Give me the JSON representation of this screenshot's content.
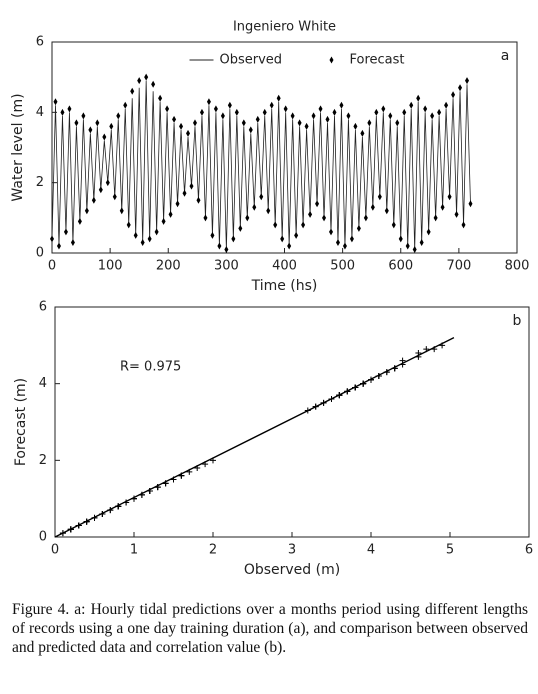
{
  "chart_data": [
    {
      "type": "line",
      "title": "Ingeniero White",
      "panel_label": "a",
      "xlabel": "Time (hs)",
      "ylabel": "Water level (m)",
      "x": [
        0,
        6,
        12,
        18,
        24,
        30,
        36,
        42,
        48,
        54,
        60,
        66,
        72,
        78,
        84,
        90,
        96,
        102,
        108,
        114,
        120,
        126,
        132,
        138,
        144,
        150,
        156,
        162,
        168,
        174,
        180,
        186,
        192,
        198,
        204,
        210,
        216,
        222,
        228,
        234,
        240,
        246,
        252,
        258,
        264,
        270,
        276,
        282,
        288,
        294,
        300,
        306,
        312,
        318,
        324,
        330,
        336,
        342,
        348,
        354,
        360,
        366,
        372,
        378,
        384,
        390,
        396,
        402,
        408,
        414,
        420,
        426,
        432,
        438,
        444,
        450,
        456,
        462,
        468,
        474,
        480,
        486,
        492,
        498,
        504,
        510,
        516,
        522,
        528,
        534,
        540,
        546,
        552,
        558,
        564,
        570,
        576,
        582,
        588,
        594,
        600,
        606,
        612,
        618,
        624,
        630,
        636,
        642,
        648,
        654,
        660,
        666,
        672,
        678,
        684,
        690,
        696,
        702,
        708,
        714,
        720
      ],
      "series": [
        {
          "name": "Observed",
          "color": "#222222",
          "marker": "line",
          "values": [
            0.4,
            4.2,
            0.2,
            3.9,
            0.6,
            4.0,
            0.3,
            3.6,
            0.9,
            3.8,
            1.2,
            3.4,
            1.5,
            3.6,
            1.8,
            3.2,
            2.0,
            3.5,
            1.6,
            3.8,
            1.2,
            4.1,
            0.8,
            4.4,
            0.5,
            4.7,
            0.3,
            4.9,
            0.4,
            4.6,
            0.6,
            4.3,
            0.9,
            4.0,
            1.1,
            3.7,
            1.4,
            3.5,
            1.7,
            3.3,
            1.9,
            3.6,
            1.5,
            3.9,
            1.0,
            4.2,
            0.5,
            4.0,
            0.2,
            3.8,
            0.1,
            4.1,
            0.4,
            3.9,
            0.7,
            3.6,
            1.0,
            3.4,
            1.3,
            3.7,
            1.6,
            3.9,
            1.2,
            4.1,
            0.8,
            4.3,
            0.4,
            4.0,
            0.2,
            3.8,
            0.5,
            3.6,
            0.8,
            3.5,
            1.1,
            3.8,
            1.4,
            4.0,
            1.0,
            3.7,
            0.6,
            3.9,
            0.3,
            4.1,
            0.2,
            3.8,
            0.4,
            3.5,
            0.7,
            3.3,
            1.0,
            3.6,
            1.3,
            3.9,
            1.6,
            4.0,
            1.2,
            3.8,
            0.8,
            3.6,
            0.4,
            3.9,
            0.2,
            4.1,
            0.1,
            4.3,
            0.3,
            4.0,
            0.6,
            3.8,
            1.0,
            3.9,
            1.3,
            4.1,
            1.6,
            4.4,
            1.1,
            4.6,
            0.8,
            4.8,
            1.4
          ]
        },
        {
          "name": "Forecast",
          "color": "#000000",
          "marker": "diamond",
          "values": [
            0.4,
            4.3,
            0.2,
            4.0,
            0.6,
            4.1,
            0.3,
            3.7,
            0.9,
            3.9,
            1.2,
            3.5,
            1.5,
            3.7,
            1.8,
            3.3,
            2.0,
            3.6,
            1.6,
            3.9,
            1.2,
            4.2,
            0.8,
            4.6,
            0.5,
            4.9,
            0.3,
            5.0,
            0.4,
            4.8,
            0.6,
            4.4,
            0.9,
            4.1,
            1.1,
            3.8,
            1.4,
            3.6,
            1.7,
            3.4,
            1.9,
            3.7,
            1.5,
            4.0,
            1.0,
            4.3,
            0.5,
            4.1,
            0.2,
            3.9,
            0.1,
            4.2,
            0.4,
            4.0,
            0.7,
            3.7,
            1.0,
            3.5,
            1.3,
            3.8,
            1.6,
            4.0,
            1.2,
            4.2,
            0.8,
            4.4,
            0.4,
            4.1,
            0.2,
            3.9,
            0.5,
            3.7,
            0.8,
            3.6,
            1.1,
            3.9,
            1.4,
            4.1,
            1.0,
            3.8,
            0.6,
            4.0,
            0.3,
            4.2,
            0.2,
            3.9,
            0.4,
            3.6,
            0.7,
            3.4,
            1.0,
            3.7,
            1.3,
            4.0,
            1.6,
            4.1,
            1.2,
            3.9,
            0.8,
            3.7,
            0.4,
            4.0,
            0.2,
            4.2,
            0.1,
            4.4,
            0.3,
            4.1,
            0.6,
            3.9,
            1.0,
            4.0,
            1.3,
            4.2,
            1.6,
            4.5,
            1.1,
            4.7,
            0.8,
            4.9,
            1.4
          ]
        }
      ],
      "xlim": [
        0,
        800
      ],
      "ylim": [
        0,
        6
      ],
      "xticks": [
        0,
        100,
        200,
        300,
        400,
        500,
        600,
        700,
        800
      ],
      "yticks": [
        0,
        2,
        4,
        6
      ],
      "legend": "upper center"
    },
    {
      "type": "scatter",
      "panel_label": "b",
      "annotation": "R= 0.975",
      "xlabel": "Observed (m)",
      "ylabel": "Forecast (m)",
      "fit_line": {
        "x": [
          0,
          5.05
        ],
        "y": [
          0,
          5.2
        ]
      },
      "xlim": [
        0,
        6
      ],
      "ylim": [
        0,
        6
      ],
      "xticks": [
        0,
        1,
        2,
        3,
        4,
        5,
        6
      ],
      "yticks": [
        0,
        2,
        4,
        6
      ]
    }
  ],
  "caption": "Figure 4. a: Hourly tidal predictions over a months period using different lengths of records using a one day training duration (a), and comparison between observed and predicted data and correlation value (b)."
}
